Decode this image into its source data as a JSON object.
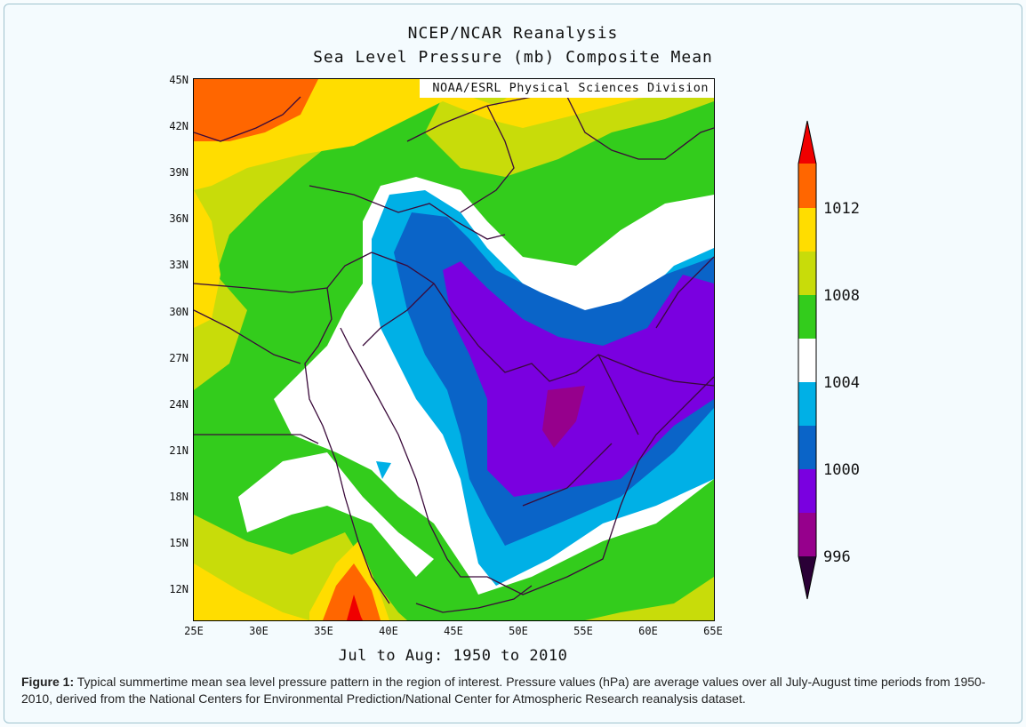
{
  "header": {
    "title": "NCEP/NCAR Reanalysis",
    "subtitle": "Sea Level Pressure (mb) Composite Mean"
  },
  "map": {
    "credit": "NOAA/ESRL Physical Sciences Division",
    "period": "Jul to Aug: 1950 to 2010",
    "lat_labels": [
      "45N",
      "42N",
      "39N",
      "36N",
      "33N",
      "30N",
      "27N",
      "24N",
      "21N",
      "18N",
      "15N",
      "12N"
    ],
    "lon_labels": [
      "25E",
      "30E",
      "35E",
      "40E",
      "45E",
      "50E",
      "55E",
      "60E",
      "65E"
    ]
  },
  "colorbar": {
    "labels": [
      "1012",
      "1008",
      "1004",
      "1000",
      "996"
    ],
    "colors": {
      "over_1014": "#f00000",
      "1012_1014": "#ff6600",
      "1010_1012": "#ffdd00",
      "1008_1010": "#c8dc0a",
      "1006_1008": "#33cc1c",
      "1004_1006": "#ffffff",
      "1002_1004": "#00b0e6",
      "1000_1002": "#0a64c8",
      "998_1000": "#7a00e0",
      "996_998": "#96008c",
      "under_996": "#2a0036"
    }
  },
  "caption": {
    "label": "Figure 1:",
    "text": " Typical summertime mean sea level pressure pattern in the region of interest. Pressure values (hPa) are average values over all July-August time periods from 1950-2010, derived from the National Centers for Environmental Prediction/National Center for Atmospheric Research reanalysis dataset."
  }
}
